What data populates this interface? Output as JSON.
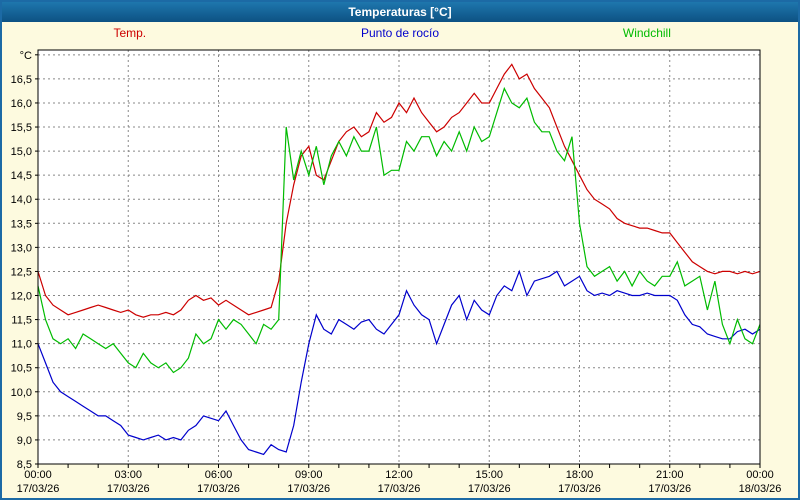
{
  "window": {
    "title": "Temperaturas [°C]"
  },
  "colors": {
    "title_bar_top": "#1e77ad",
    "title_bar_bottom": "#0d5183",
    "frame_border": "#1c6aa5",
    "page_background": "#fdfadf",
    "plot_background": "#ffffff",
    "grid": "#888888",
    "axis": "#000000",
    "temp_line": "#cc0000",
    "dewpoint_line": "#0000cc",
    "windchill_line": "#00bb00"
  },
  "chart_data": {
    "type": "line",
    "title": "Temperaturas [°C]",
    "unit_label": "°C",
    "grid": "dashed",
    "legend_position": "top",
    "ylim": [
      8.5,
      17.1
    ],
    "ytick_step": 0.5,
    "ytick_labels": [
      "16,5",
      "16,0",
      "15,5",
      "15,0",
      "14,5",
      "14,0",
      "13,5",
      "13,0",
      "12,5",
      "12,0",
      "11,5",
      "11,0",
      "10,5",
      "10,0",
      "9,5",
      "9,0",
      "8,5"
    ],
    "xtick_labels": [
      "00:00",
      "03:00",
      "06:00",
      "09:00",
      "12:00",
      "15:00",
      "18:00",
      "21:00",
      "00:00"
    ],
    "xtick_dates": [
      "17/03/26",
      "17/03/26",
      "17/03/26",
      "17/03/26",
      "17/03/26",
      "17/03/26",
      "17/03/26",
      "17/03/26",
      "18/03/26"
    ],
    "x_hours_total": 24,
    "x_step_minutes": 15,
    "series": [
      {
        "name": "Temp.",
        "color": "#cc0000",
        "values": [
          12.5,
          12.0,
          11.8,
          11.7,
          11.6,
          11.65,
          11.7,
          11.75,
          11.8,
          11.75,
          11.7,
          11.65,
          11.7,
          11.6,
          11.55,
          11.6,
          11.6,
          11.65,
          11.6,
          11.7,
          11.9,
          12.0,
          11.9,
          11.95,
          11.8,
          11.9,
          11.8,
          11.7,
          11.6,
          11.65,
          11.7,
          11.75,
          12.3,
          13.5,
          14.3,
          14.9,
          15.1,
          14.5,
          14.4,
          14.8,
          15.2,
          15.4,
          15.5,
          15.3,
          15.4,
          15.8,
          15.6,
          15.7,
          16.0,
          15.8,
          16.1,
          15.8,
          15.6,
          15.4,
          15.5,
          15.7,
          15.8,
          16.0,
          16.2,
          16.0,
          16.0,
          16.3,
          16.6,
          16.8,
          16.5,
          16.6,
          16.3,
          16.1,
          15.9,
          15.5,
          15.1,
          14.8,
          14.5,
          14.2,
          14.0,
          13.9,
          13.8,
          13.6,
          13.5,
          13.45,
          13.4,
          13.4,
          13.35,
          13.3,
          13.3,
          13.1,
          12.9,
          12.7,
          12.6,
          12.5,
          12.45,
          12.5,
          12.5,
          12.45,
          12.5,
          12.45,
          12.5
        ]
      },
      {
        "name": "Punto de rocío",
        "color": "#0000cc",
        "values": [
          11.0,
          10.6,
          10.2,
          10.0,
          9.9,
          9.8,
          9.7,
          9.6,
          9.5,
          9.5,
          9.4,
          9.3,
          9.1,
          9.05,
          9.0,
          9.05,
          9.1,
          9.0,
          9.05,
          9.0,
          9.2,
          9.3,
          9.5,
          9.45,
          9.4,
          9.6,
          9.3,
          9.0,
          8.8,
          8.75,
          8.7,
          8.9,
          8.8,
          8.75,
          9.3,
          10.2,
          11.0,
          11.6,
          11.3,
          11.2,
          11.5,
          11.4,
          11.3,
          11.45,
          11.5,
          11.3,
          11.2,
          11.4,
          11.6,
          12.1,
          11.8,
          11.6,
          11.5,
          11.0,
          11.4,
          11.8,
          12.0,
          11.5,
          11.9,
          11.7,
          11.6,
          12.0,
          12.2,
          12.1,
          12.5,
          12.0,
          12.3,
          12.35,
          12.4,
          12.5,
          12.2,
          12.3,
          12.4,
          12.1,
          12.0,
          12.05,
          12.0,
          12.1,
          12.05,
          12.0,
          12.0,
          12.05,
          12.0,
          12.0,
          12.0,
          11.9,
          11.6,
          11.4,
          11.35,
          11.2,
          11.15,
          11.1,
          11.1,
          11.25,
          11.3,
          11.2,
          11.3
        ]
      },
      {
        "name": "Windchill",
        "color": "#00bb00",
        "values": [
          12.2,
          11.5,
          11.1,
          11.0,
          11.1,
          10.9,
          11.2,
          11.1,
          11.0,
          10.9,
          11.0,
          10.8,
          10.6,
          10.5,
          10.8,
          10.6,
          10.5,
          10.6,
          10.4,
          10.5,
          10.7,
          11.2,
          11.0,
          11.1,
          11.5,
          11.3,
          11.5,
          11.4,
          11.2,
          11.0,
          11.4,
          11.3,
          11.5,
          15.5,
          14.4,
          15.0,
          14.5,
          15.1,
          14.3,
          14.9,
          15.2,
          14.9,
          15.3,
          15.0,
          15.0,
          15.5,
          14.5,
          14.6,
          14.6,
          15.2,
          15.0,
          15.3,
          15.3,
          14.9,
          15.2,
          15.0,
          15.4,
          15.0,
          15.5,
          15.2,
          15.3,
          15.8,
          16.3,
          16.0,
          15.9,
          16.1,
          15.6,
          15.4,
          15.4,
          15.0,
          14.8,
          15.3,
          13.5,
          12.6,
          12.4,
          12.5,
          12.6,
          12.3,
          12.5,
          12.2,
          12.5,
          12.3,
          12.2,
          12.4,
          12.4,
          12.7,
          12.2,
          12.3,
          12.4,
          11.7,
          12.3,
          11.4,
          11.0,
          11.5,
          11.1,
          11.0,
          11.4
        ]
      }
    ]
  }
}
